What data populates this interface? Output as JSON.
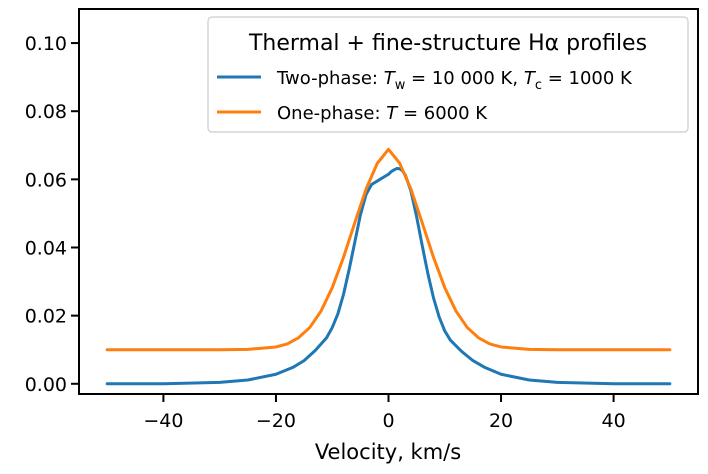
{
  "chart_data": {
    "type": "line",
    "xlabel": "Velocity, km/s",
    "ylabel": "",
    "xlim": [
      -55,
      55
    ],
    "ylim": [
      -0.003,
      0.11
    ],
    "xticks": [
      -40,
      -20,
      0,
      20,
      40
    ],
    "yticks": [
      0.0,
      0.02,
      0.04,
      0.06,
      0.08,
      0.1
    ],
    "xtick_labels": [
      "−40",
      "−20",
      "0",
      "20",
      "40"
    ],
    "ytick_labels": [
      "0.00",
      "0.02",
      "0.04",
      "0.06",
      "0.08",
      "0.10"
    ],
    "grid": false,
    "legend": {
      "placement": "top-right",
      "title": "Thermal + fine-structure Hα profiles"
    },
    "series": [
      {
        "name": "Two-phase: T_w = 10 000 K, T_c = 1000 K",
        "color": "#1f77b4",
        "x": [
          -50,
          -40,
          -30,
          -25,
          -20,
          -17,
          -15,
          -13,
          -11,
          -10,
          -9,
          -8,
          -7,
          -6,
          -5,
          -4,
          -3,
          -2,
          -1,
          0,
          0.5,
          1,
          1.5,
          2,
          2.5,
          3,
          4,
          5,
          6,
          7,
          8,
          9,
          10,
          11,
          13,
          15,
          17,
          20,
          25,
          30,
          40,
          50
        ],
        "y": [
          0.0,
          0.0,
          0.0004,
          0.0011,
          0.0028,
          0.0048,
          0.0068,
          0.0098,
          0.0135,
          0.0165,
          0.0205,
          0.0262,
          0.0335,
          0.0415,
          0.0495,
          0.0555,
          0.0585,
          0.0595,
          0.0605,
          0.0615,
          0.0623,
          0.0628,
          0.0632,
          0.0631,
          0.0625,
          0.0612,
          0.0565,
          0.049,
          0.0405,
          0.0323,
          0.0252,
          0.0196,
          0.0155,
          0.0128,
          0.0095,
          0.0068,
          0.0049,
          0.0028,
          0.0011,
          0.0004,
          0.0,
          0.0
        ]
      },
      {
        "name": "One-phase: T = 6000 K",
        "color": "#ff7f0e",
        "x": [
          -50,
          -40,
          -30,
          -25,
          -20,
          -18,
          -16,
          -14,
          -12,
          -10,
          -8,
          -6,
          -4,
          -2,
          0,
          2,
          4,
          6,
          8,
          10,
          12,
          14,
          16,
          18,
          20,
          25,
          30,
          40,
          50
        ],
        "y": [
          0.01,
          0.01,
          0.01,
          0.0101,
          0.0108,
          0.0117,
          0.0135,
          0.0165,
          0.0213,
          0.0282,
          0.0371,
          0.0472,
          0.0571,
          0.0647,
          0.0688,
          0.0647,
          0.0571,
          0.0472,
          0.0371,
          0.0282,
          0.0213,
          0.0165,
          0.0135,
          0.0117,
          0.0108,
          0.0101,
          0.01,
          0.01,
          0.01
        ]
      }
    ]
  }
}
